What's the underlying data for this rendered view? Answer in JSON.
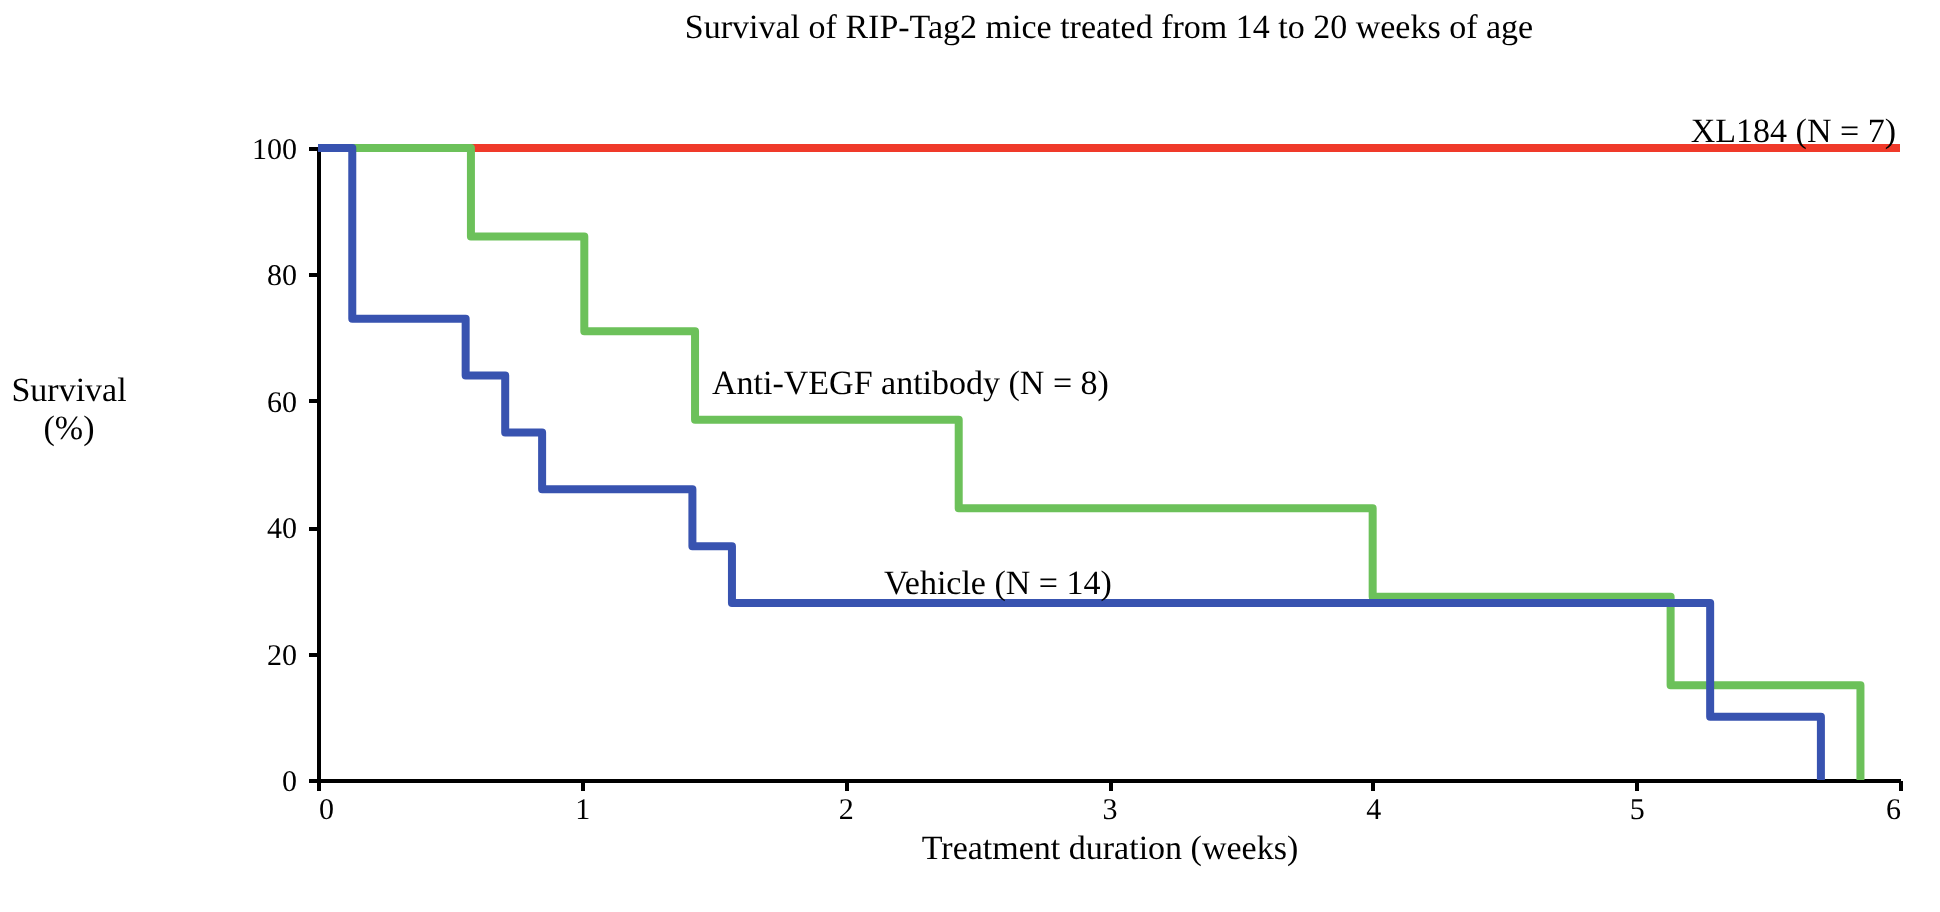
{
  "chart_data": {
    "type": "step",
    "title": "Survival of RIP-Tag2 mice treated from 14 to 20 weeks of age",
    "xlabel": "Treatment duration (weeks)",
    "ylabel": "Survival (%)",
    "xlim": [
      0,
      6
    ],
    "ylim": [
      0,
      100
    ],
    "xticks": [
      0,
      1,
      2,
      3,
      4,
      5,
      6
    ],
    "yticks": [
      0,
      20,
      40,
      60,
      80,
      100
    ],
    "line_style": "solid",
    "series": [
      {
        "name": "XL184 (N = 7)",
        "color": "#f03a2a",
        "x": [
          0,
          6
        ],
        "values": [
          100,
          100
        ]
      },
      {
        "name": "Anti-VEGF antibody (N = 8)",
        "color": "#6cc15a",
        "x": [
          0,
          0.58,
          1.01,
          1.43,
          2.43,
          4.0,
          5.13,
          5.85
        ],
        "values": [
          100,
          86,
          71,
          57,
          43,
          29,
          15,
          0
        ]
      },
      {
        "name": "Vehicle (N = 14)",
        "color": "#3853b0",
        "x": [
          0,
          0.13,
          0.56,
          0.71,
          0.85,
          1.42,
          1.57,
          5.28,
          5.7
        ],
        "values": [
          100,
          73,
          64,
          55,
          46,
          37,
          28,
          10,
          0
        ]
      }
    ]
  }
}
